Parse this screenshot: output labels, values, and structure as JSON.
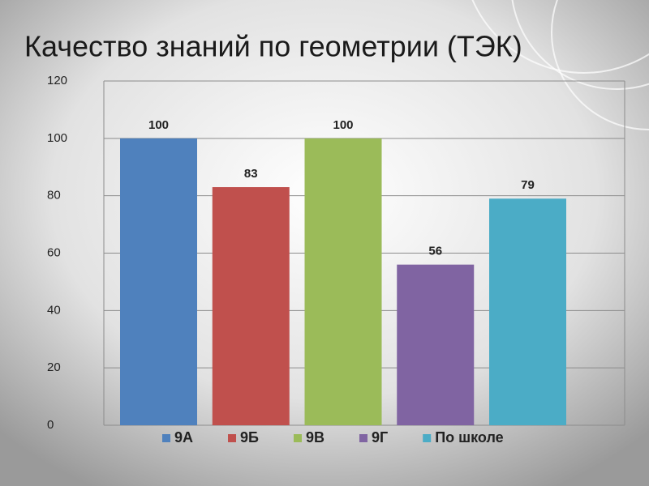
{
  "chart_data": {
    "type": "bar",
    "title": "Качество знаний по геометрии (ТЭК)",
    "series": [
      {
        "name": "9А",
        "color": "#4f81bd",
        "values": [
          100
        ]
      },
      {
        "name": "9Б",
        "color": "#c0504d",
        "values": [
          83
        ]
      },
      {
        "name": "9В",
        "color": "#9bbb59",
        "values": [
          100
        ]
      },
      {
        "name": "9Г",
        "color": "#8064a2",
        "values": [
          56
        ]
      },
      {
        "name": "По школе",
        "color": "#4bacc6",
        "values": [
          79
        ]
      }
    ],
    "ylim": [
      0,
      120
    ],
    "yticks": [
      0,
      20,
      40,
      60,
      80,
      100,
      120
    ],
    "grid": true,
    "legend": "bottom"
  }
}
